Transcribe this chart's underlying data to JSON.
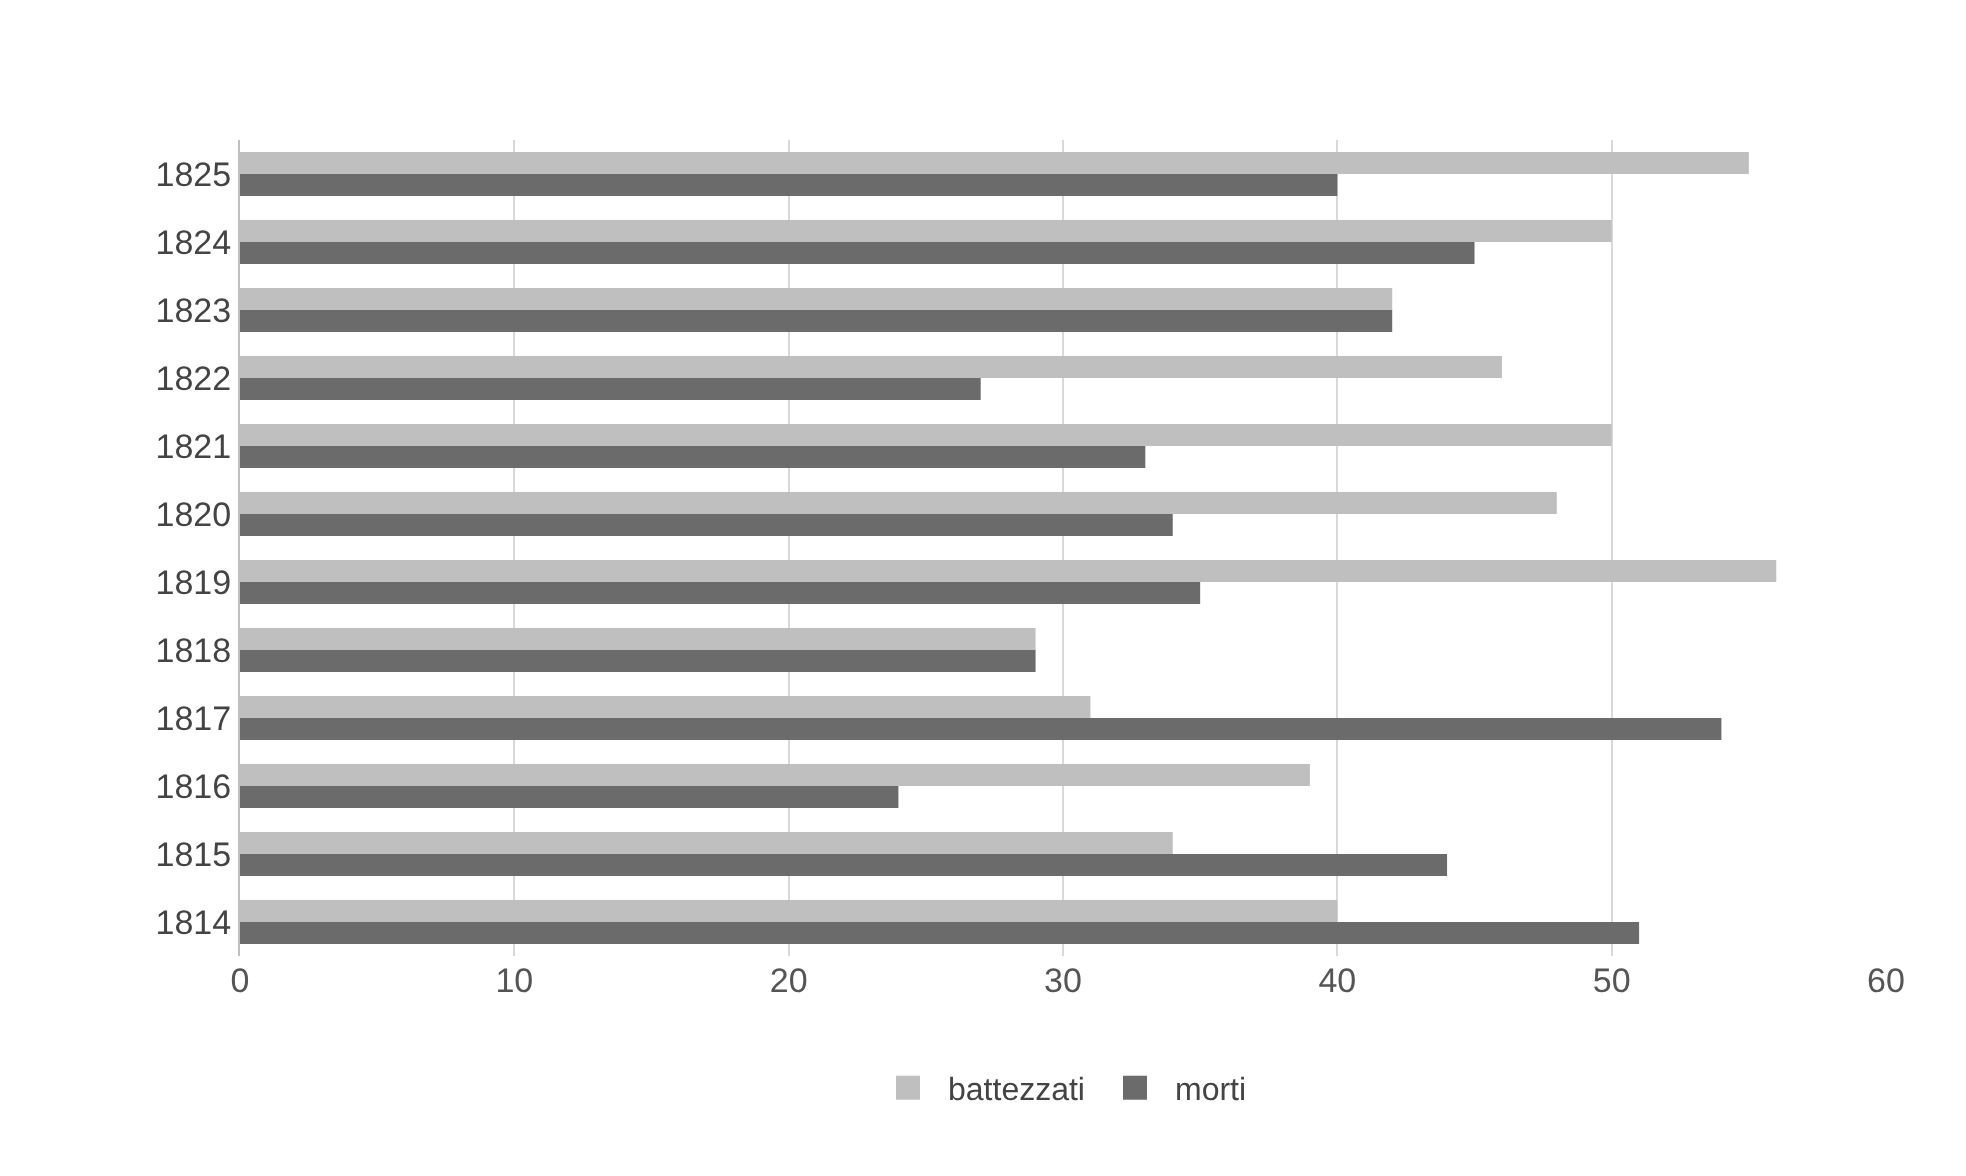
{
  "chart_data": {
    "type": "bar",
    "orientation": "horizontal",
    "categories": [
      "1825",
      "1824",
      "1823",
      "1822",
      "1821",
      "1820",
      "1819",
      "1818",
      "1817",
      "1816",
      "1815",
      "1814"
    ],
    "series": [
      {
        "name": "battezzati",
        "color": "#bfbfbf",
        "values": [
          55,
          50,
          42,
          46,
          50,
          48,
          56,
          29,
          31,
          39,
          34,
          40
        ]
      },
      {
        "name": "morti",
        "color": "#6b6b6b",
        "values": [
          40,
          45,
          42,
          27,
          33,
          34,
          35,
          29,
          54,
          24,
          44,
          51
        ]
      }
    ],
    "xlim": [
      0,
      60
    ],
    "xticks": [
      0,
      10,
      20,
      30,
      40,
      50,
      60
    ],
    "grid": "x",
    "legend": "bottom"
  }
}
